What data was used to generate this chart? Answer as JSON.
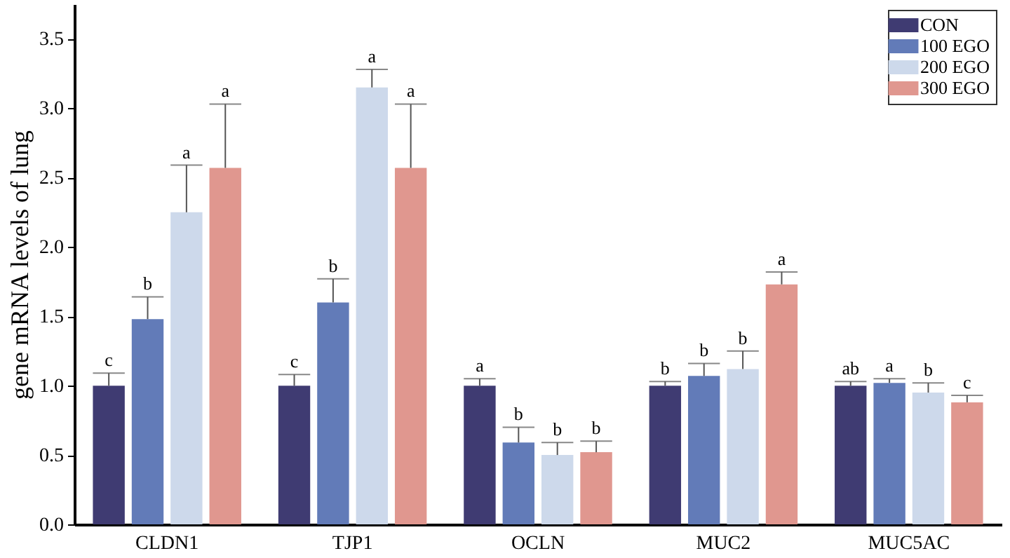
{
  "chart_data": {
    "type": "bar",
    "ylabel": "gene mRNA levels of lung",
    "categories": [
      "CLDN1",
      "TJP1",
      "OCLN",
      "MUC2",
      "MUC5AC"
    ],
    "series": [
      {
        "name": "CON",
        "color": "#3f3b72",
        "values": [
          1.0,
          1.0,
          1.0,
          1.0,
          1.0
        ],
        "errors": [
          [
            1.0,
            1.09
          ],
          [
            1.0,
            1.08
          ],
          [
            1.0,
            1.05
          ],
          [
            1.0,
            1.03
          ],
          [
            1.0,
            1.03
          ]
        ]
      },
      {
        "name": "100 EGO",
        "color": "#627bb8",
        "values": [
          1.48,
          1.6,
          0.59,
          1.07,
          1.02
        ],
        "errors": [
          [
            1.48,
            1.64
          ],
          [
            1.6,
            1.77
          ],
          [
            0.59,
            0.7
          ],
          [
            1.07,
            1.16
          ],
          [
            1.02,
            1.05
          ]
        ]
      },
      {
        "name": "200 EGO",
        "color": "#cdd9eb",
        "values": [
          2.25,
          3.15,
          0.5,
          1.12,
          0.95
        ],
        "errors": [
          [
            2.25,
            2.59
          ],
          [
            3.15,
            3.28
          ],
          [
            0.5,
            0.59
          ],
          [
            1.12,
            1.25
          ],
          [
            0.95,
            1.02
          ]
        ]
      },
      {
        "name": "300 EGO",
        "color": "#e0978f",
        "values": [
          2.57,
          2.57,
          0.52,
          1.73,
          0.88
        ],
        "errors": [
          [
            2.57,
            3.03
          ],
          [
            2.57,
            3.03
          ],
          [
            0.52,
            0.6
          ],
          [
            1.73,
            1.82
          ],
          [
            0.88,
            0.93
          ]
        ]
      }
    ],
    "annotations": [
      "c",
      "b",
      "a",
      "a",
      "c",
      "b",
      "a",
      "a",
      "a",
      "b",
      "b",
      "b",
      "b",
      "b",
      "b",
      "a",
      "ab",
      "a",
      "b",
      "c"
    ],
    "ylim": [
      0,
      3.75
    ],
    "yticks": [
      {
        "value": 0,
        "label": "0.0"
      },
      {
        "value": 0.5,
        "label": "0.5"
      },
      {
        "value": 1,
        "label": "1.0"
      },
      {
        "value": 1.5,
        "label": "1.5"
      },
      {
        "value": 2,
        "label": "2.0"
      },
      {
        "value": 2.5,
        "label": "2.5"
      },
      {
        "value": 3,
        "label": "3.0"
      },
      {
        "value": 3.5,
        "label": "3.5"
      }
    ],
    "legend": "top right",
    "grid": false
  }
}
